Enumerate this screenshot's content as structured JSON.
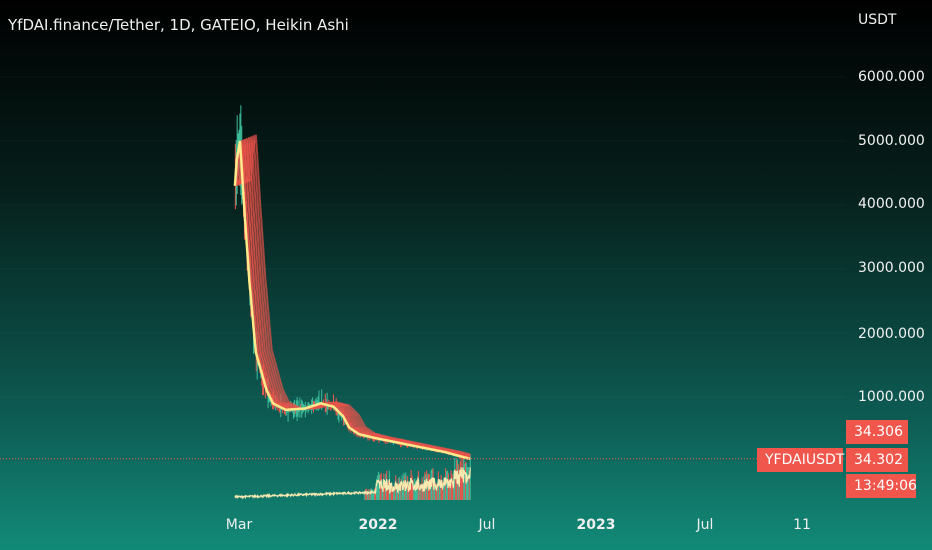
{
  "header": {
    "title": "YfDAI.finance/Tether, 1D, GATEIO, Heikin Ashi",
    "unit": "USDT"
  },
  "price_axis": {
    "ticks": [
      "6000.000",
      "5000.000",
      "4000.000",
      "3000.000",
      "2000.000",
      "1000.000"
    ]
  },
  "time_axis": {
    "ticks": [
      {
        "label": "Mar",
        "bold": false
      },
      {
        "label": "2022",
        "bold": true
      },
      {
        "label": "Jul",
        "bold": false
      },
      {
        "label": "2023",
        "bold": true
      },
      {
        "label": "Jul",
        "bold": false
      },
      {
        "label": "11",
        "bold": false
      }
    ]
  },
  "price_tags": {
    "upper_price": "34.306",
    "symbol": "YFDAIUSDT",
    "last_price": "34.302",
    "countdown": "13:49:06"
  },
  "colors": {
    "up": "#3dbf9c",
    "down": "#f0564c",
    "fast_ma": "#ffe98a",
    "slow_ma": "#e8534a",
    "volume_line": "#f7e9b0"
  },
  "chart_data": {
    "type": "line",
    "title": "YfDAI.finance/Tether, 1D, GATEIO, Heikin Ashi",
    "xlabel": "",
    "ylabel": "USDT",
    "ylim": [
      -200,
      6500
    ],
    "x_dates": [
      "2021-02-20",
      "2021-02-24",
      "2021-03-03",
      "2021-03-06",
      "2021-03-13",
      "2021-03-24",
      "2021-04-07",
      "2021-05-01",
      "2021-05-15",
      "2021-06-12",
      "2021-07-24",
      "2021-08-28",
      "2021-09-25",
      "2021-10-16",
      "2021-10-30",
      "2021-11-20",
      "2021-12-25",
      "2022-02-05",
      "2022-04-02",
      "2022-05-28",
      "2022-07-09",
      "2022-07-23"
    ],
    "series": [
      {
        "values": [
          4300,
          4700,
          5000,
          4700,
          3900,
          2800,
          1700,
          1100,
          900,
          800,
          820,
          900,
          850,
          700,
          520,
          420,
          360,
          300,
          220,
          140,
          60,
          34
        ]
      }
    ],
    "last_price": 34.302
  }
}
